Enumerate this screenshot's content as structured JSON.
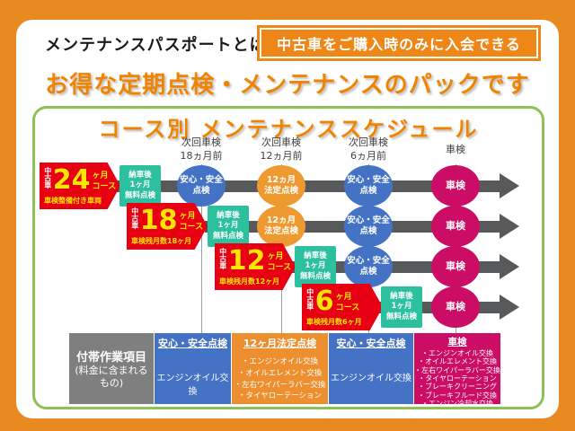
{
  "header": {
    "label": "メンテナンスパスポートとは",
    "badge": "中古車をご購入時のみに入会できる",
    "title": "お得な定期点検・メンテナンスのパックです"
  },
  "schedule": {
    "title": "コース別 メンテナンススケジュール",
    "columns": [
      "次回車検\n18ヵ月前",
      "次回車検\n12ヵ月前",
      "次回車検\n6ヵ月前",
      "車検"
    ],
    "rows": [
      {
        "prefix": "中古車",
        "number": "24",
        "unit": "ヶ月",
        "suffix": "コース",
        "note": "車検整備付き車両",
        "free_check": "納車後\n1ヶ月\n無料点検",
        "stops": [
          {
            "type": "blue",
            "label": "安心・安全\n点検"
          },
          {
            "type": "orange",
            "label": "12ヵ月\n法定点検"
          },
          {
            "type": "blue",
            "label": "安心・安全\n点検"
          },
          {
            "type": "pink",
            "label": "車検"
          }
        ]
      },
      {
        "prefix": "中古車",
        "number": "18",
        "unit": "ヶ月",
        "suffix": "コース",
        "note": "車検残月数18ヶ月",
        "free_check": "納車後\n1ヶ月\n無料点検",
        "stops": [
          {
            "type": "orange",
            "label": "12ヵ月\n法定点検"
          },
          {
            "type": "blue",
            "label": "安心・安全\n点検"
          },
          {
            "type": "pink",
            "label": "車検"
          }
        ]
      },
      {
        "prefix": "中古車",
        "number": "12",
        "unit": "ヶ月",
        "suffix": "コース",
        "note": "車検残月数12ヶ月",
        "free_check": "納車後\n1ヶ月\n無料点検",
        "stops": [
          {
            "type": "blue",
            "label": "安心・安全\n点検"
          },
          {
            "type": "pink",
            "label": "車検"
          }
        ]
      },
      {
        "prefix": "中古車",
        "number": "6",
        "unit": "ヶ月",
        "suffix": "コース",
        "note": "車検残月数6ヶ月",
        "free_check": "納車後\n1ヶ月\n無料点検",
        "stops": [
          {
            "type": "pink",
            "label": "車検"
          }
        ]
      }
    ],
    "table": {
      "row_header_title": "付帯作業項目",
      "row_header_sub": "(料金に含まれる\nもの)",
      "cells": [
        {
          "header": "安心・安全点検",
          "body": "エンジンオイル交換"
        },
        {
          "header": "12ヶ月法定点検",
          "body": "・エンジンオイル交換\n・オイルエレメント交換\n・左右ワイパーラバー交換\n・タイヤローテーション"
        },
        {
          "header": "安心・安全点検",
          "body": "エンジンオイル交換"
        },
        {
          "header": "車検",
          "body": "・エンジンオイル交換\n・オイルエレメント交換\n・左右ワイパーラバー交換\n・タイヤローテーション\n・ブレーキクリーニング\n・ブレーキフルード交換\n・エンジン冷却水交換"
        }
      ]
    }
  },
  "colors": {
    "page_orange": "#E98A20",
    "badge_red": "#E60012",
    "badge_yellow": "#FFE600",
    "ellipse_blue": "#4472C4",
    "ellipse_orange": "#EE9A30",
    "ellipse_pink": "#CC0D66",
    "free_check_teal": "#2CC09F",
    "timeline_gray": "#58595B",
    "panel_border_green": "#8DC153",
    "table_gray": "#7F7F7F"
  }
}
